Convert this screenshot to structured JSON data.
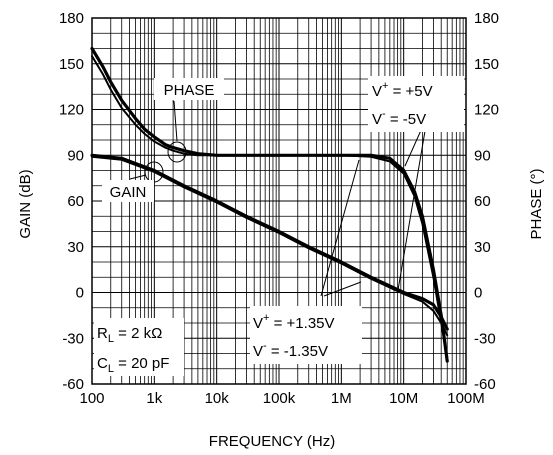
{
  "chart_data": {
    "type": "line",
    "xscale": "log",
    "xlabel": "FREQUENCY (Hz)",
    "ylabel_left": "GAIN (dB)",
    "ylabel_right": "PHASE (°)",
    "xlim": [
      100,
      100000000
    ],
    "ylim_left": [
      -60,
      180
    ],
    "ylim_right": [
      -60,
      180
    ],
    "grid": true,
    "x_ticks": [
      {
        "value": 100,
        "label": "100"
      },
      {
        "value": 1000,
        "label": "1k"
      },
      {
        "value": 10000,
        "label": "10k"
      },
      {
        "value": 100000,
        "label": "100k"
      },
      {
        "value": 1000000,
        "label": "1M"
      },
      {
        "value": 10000000,
        "label": "10M"
      },
      {
        "value": 100000000,
        "label": "100M"
      }
    ],
    "y_ticks_left": [
      "-60",
      "-30",
      "0",
      "30",
      "60",
      "90",
      "120",
      "150",
      "180"
    ],
    "y_ticks_right": [
      "-60",
      "-30",
      "0",
      "30",
      "60",
      "90",
      "120",
      "150",
      "180"
    ],
    "series": [
      {
        "name": "GAIN",
        "supply": "V+ = +5V, V- = -5V",
        "x": [
          100,
          300,
          1000,
          3000,
          10000,
          30000,
          100000,
          300000,
          1000000,
          3000000,
          10000000,
          20000000,
          30000000,
          40000000,
          50000000
        ],
        "y": [
          90,
          88,
          80,
          70,
          60,
          50,
          40,
          30,
          20,
          10,
          0,
          -4,
          -8,
          -16,
          -24
        ]
      },
      {
        "name": "GAIN",
        "supply": "V+ = +1.35V, V- = -1.35V",
        "x": [
          100,
          300,
          1000,
          3000,
          10000,
          30000,
          100000,
          300000,
          1000000,
          3000000,
          10000000,
          20000000,
          30000000,
          40000000,
          50000000
        ],
        "y": [
          89,
          87,
          79,
          69,
          59,
          49,
          39,
          29,
          19,
          9,
          -1,
          -6,
          -12,
          -20,
          -28
        ]
      },
      {
        "name": "PHASE",
        "supply": "V+ = +5V, V- = -5V",
        "x": [
          100,
          150,
          200,
          300,
          500,
          700,
          1000,
          1500,
          2000,
          3000,
          5000,
          10000,
          100000,
          1000000,
          3000000,
          6000000,
          10000000,
          15000000,
          20000000,
          30000000,
          40000000,
          50000000
        ],
        "y": [
          160,
          148,
          138,
          126,
          114,
          107,
          102,
          97,
          95,
          93,
          91,
          90,
          90,
          90,
          90,
          88,
          80,
          66,
          50,
          15,
          -15,
          -45
        ]
      },
      {
        "name": "PHASE",
        "supply": "V+ = +1.35V, V- = -1.35V",
        "x": [
          100,
          150,
          200,
          300,
          500,
          700,
          1000,
          1500,
          2000,
          3000,
          5000,
          10000,
          100000,
          1000000,
          3000000,
          6000000,
          10000000,
          15000000,
          20000000,
          30000000,
          40000000,
          50000000
        ],
        "y": [
          155,
          143,
          133,
          121,
          110,
          104,
          99,
          95,
          93,
          91,
          90,
          90,
          90,
          90,
          89,
          86,
          78,
          63,
          45,
          10,
          -20,
          -42
        ]
      }
    ],
    "annotations": {
      "phase_label": "PHASE",
      "gain_label": "GAIN",
      "supply_high_1_pre": "V",
      "supply_high_1_sup": "+",
      "supply_high_1_post": " = +5V",
      "supply_high_2_pre": "V",
      "supply_high_2_sup": "-",
      "supply_high_2_post": " = -5V",
      "supply_low_1_pre": "V",
      "supply_low_1_sup": "+",
      "supply_low_1_post": " = +1.35V",
      "supply_low_2_pre": "V",
      "supply_low_2_sup": "-",
      "supply_low_2_post": " = -1.35V",
      "rl_pre": "R",
      "rl_sub": "L",
      "rl_post": " = 2 kΩ",
      "cl_pre": "C",
      "cl_sub": "L",
      "cl_post": " = 20 pF"
    }
  }
}
